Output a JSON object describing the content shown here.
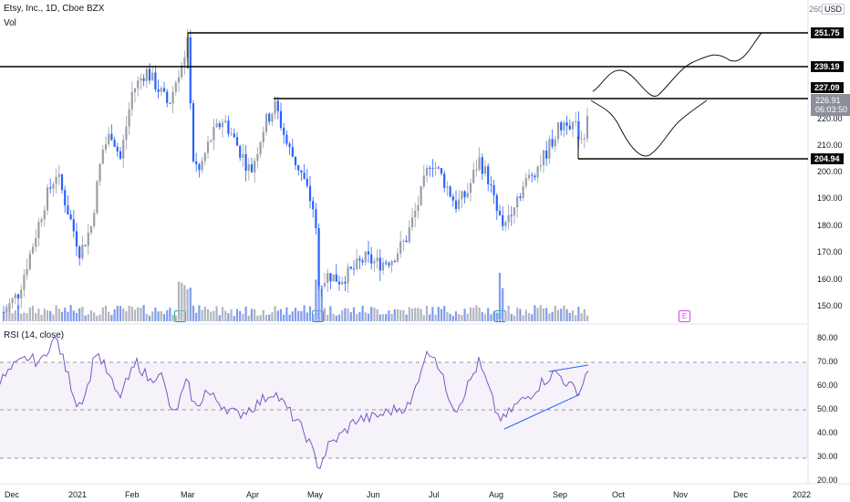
{
  "header": {
    "title": "Etsy, Inc., 1D, Cboe BZX",
    "vol_label": "Vol",
    "currency": "USD",
    "top_axis_value": "260"
  },
  "rsi": {
    "label": "RSI (14, close)"
  },
  "price_axis": {
    "ticks": [
      "220.00",
      "210.00",
      "200.00",
      "190.00",
      "180.00",
      "170.00",
      "160.00",
      "150.00"
    ],
    "levels": [
      "251.75",
      "239.19",
      "227.09",
      "204.94"
    ],
    "current_price": "226.91",
    "countdown": "06:03:50"
  },
  "rsi_axis": {
    "ticks": [
      "80.00",
      "70.00",
      "60.00",
      "50.00",
      "40.00",
      "30.00",
      "20.00"
    ]
  },
  "time_axis": {
    "labels": [
      "Dec",
      "2021",
      "Feb",
      "Mar",
      "Apr",
      "May",
      "Jun",
      "Jul",
      "Aug",
      "Sep",
      "Oct",
      "Nov",
      "Dec",
      "2022"
    ]
  },
  "earnings_marker": "E",
  "colors": {
    "up": "#9a9ea7",
    "down": "#2962ff",
    "vol_up": "#b2b5be",
    "vol_down": "#7e9cf0",
    "rsi_line": "#7e57c2",
    "rsi_band": "#7e57c2",
    "projection": "#131722"
  }
}
